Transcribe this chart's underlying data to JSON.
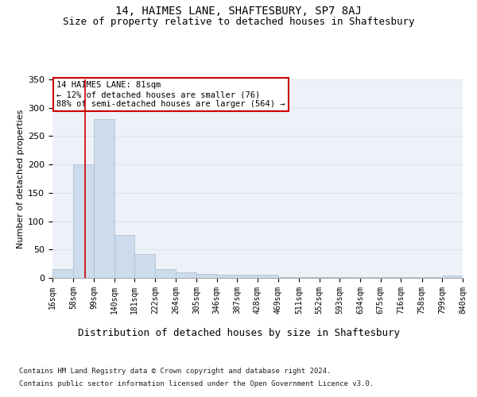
{
  "title": "14, HAIMES LANE, SHAFTESBURY, SP7 8AJ",
  "subtitle": "Size of property relative to detached houses in Shaftesbury",
  "xlabel": "Distribution of detached houses by size in Shaftesbury",
  "ylabel": "Number of detached properties",
  "bar_color": "#ccdcec",
  "bar_edge_color": "#aabccc",
  "grid_color": "#d8e4f0",
  "background_color": "#eef2f8",
  "bin_edges": [
    16,
    58,
    99,
    140,
    181,
    222,
    264,
    305,
    346,
    387,
    428,
    469,
    511,
    552,
    593,
    634,
    675,
    716,
    758,
    799,
    840
  ],
  "bar_heights": [
    15,
    200,
    280,
    75,
    42,
    15,
    10,
    7,
    6,
    6,
    6,
    2,
    2,
    2,
    1,
    1,
    1,
    1,
    1,
    4
  ],
  "property_size": 81,
  "red_line_color": "#cc0000",
  "annotation_text": "14 HAIMES LANE: 81sqm\n← 12% of detached houses are smaller (76)\n88% of semi-detached houses are larger (564) →",
  "annotation_box_color": "#ffffff",
  "annotation_border_color": "#cc0000",
  "ylim": [
    0,
    350
  ],
  "yticks": [
    0,
    50,
    100,
    150,
    200,
    250,
    300,
    350
  ],
  "footnote1": "Contains HM Land Registry data © Crown copyright and database right 2024.",
  "footnote2": "Contains public sector information licensed under the Open Government Licence v3.0.",
  "title_fontsize": 10,
  "subtitle_fontsize": 9,
  "xlabel_fontsize": 9,
  "ylabel_fontsize": 8,
  "tick_fontsize": 7,
  "annotation_fontsize": 7.5,
  "footnote_fontsize": 6.5
}
